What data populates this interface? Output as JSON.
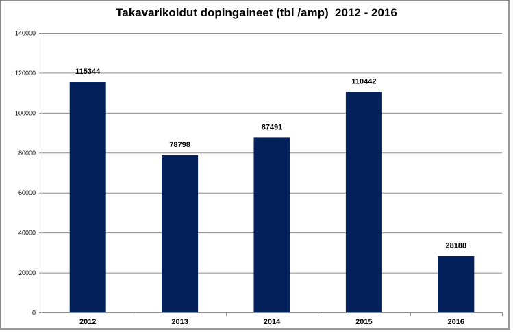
{
  "chart_data": {
    "type": "bar",
    "title": "Takavarikoidut dopingaineet (tbl /amp)  2012 - 2016",
    "xlabel": "",
    "ylabel": "",
    "categories": [
      "2012",
      "2013",
      "2014",
      "2015",
      "2016"
    ],
    "values": [
      115344,
      78798,
      87491,
      110442,
      28188
    ],
    "data_labels": [
      "115344",
      "78798",
      "87491",
      "110442",
      "28188"
    ],
    "ylim": [
      0,
      140000
    ],
    "yticks": [
      0,
      20000,
      40000,
      60000,
      80000,
      100000,
      120000,
      140000
    ],
    "ytick_labels": [
      "0",
      "20000",
      "40000",
      "60000",
      "80000",
      "100000",
      "120000",
      "140000"
    ],
    "grid": true,
    "legend": "none",
    "colors": {
      "bar": "#03205a",
      "grid": "#8c8c8c",
      "axis": "#8c8c8c"
    }
  }
}
